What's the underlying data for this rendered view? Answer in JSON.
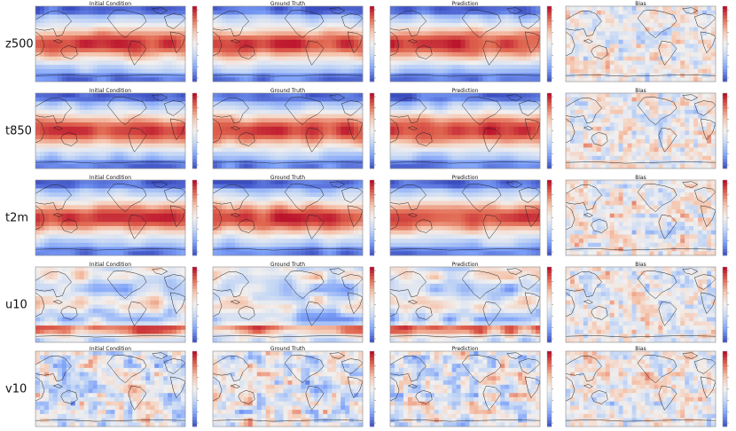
{
  "chart_data": {
    "type": "heatmap",
    "columns": [
      "Initial Condition",
      "Ground Truth",
      "Prediction",
      "Bias"
    ],
    "rows": [
      {
        "variable": "z500",
        "pattern": "zonal",
        "bias_pattern": "noise"
      },
      {
        "variable": "t850",
        "pattern": "zonal",
        "bias_pattern": "noise"
      },
      {
        "variable": "t2m",
        "pattern": "zonal",
        "bias_pattern": "noise"
      },
      {
        "variable": "u10",
        "pattern": "bands",
        "bias_pattern": "noise"
      },
      {
        "variable": "v10",
        "pattern": "noise",
        "bias_pattern": "noise"
      }
    ],
    "colormap": [
      "#3b4cc0",
      "#7b9ff9",
      "#c0d4f5",
      "#f2f0ef",
      "#f5c4ac",
      "#e0654f",
      "#b40426"
    ],
    "grid": false,
    "legend": "colorbar-right"
  }
}
